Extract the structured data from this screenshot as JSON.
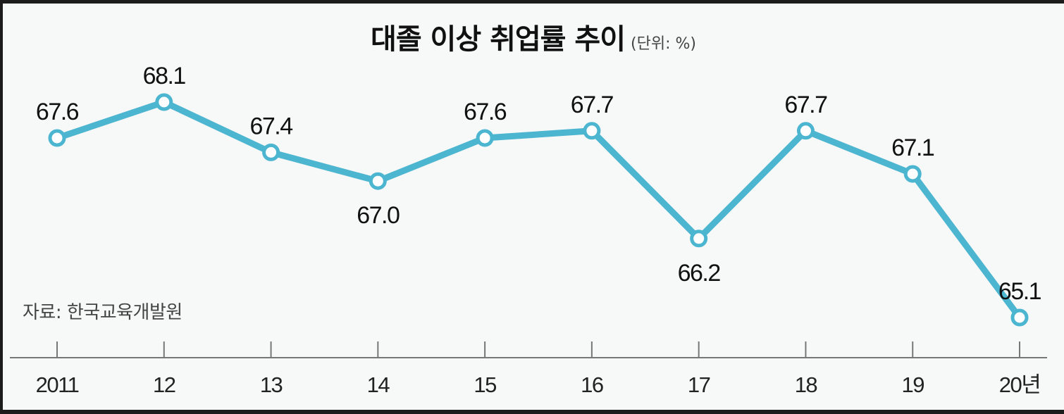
{
  "chart_data": {
    "type": "line",
    "title": "대졸 이상 취업률 추이",
    "unit_label": "(단위: %)",
    "source": "자료: 한국교육개발원",
    "xlabel": "",
    "ylabel": "",
    "categories": [
      "2011",
      "12",
      "13",
      "14",
      "15",
      "16",
      "17",
      "18",
      "19",
      "20년"
    ],
    "series": [
      {
        "name": "대졸 이상 취업률",
        "values": [
          67.6,
          68.1,
          67.4,
          67.0,
          67.6,
          67.7,
          66.2,
          67.7,
          67.1,
          65.1
        ],
        "labels": [
          "67.6",
          "68.1",
          "67.4",
          "67.0",
          "67.6",
          "67.7",
          "66.2",
          "67.7",
          "67.1",
          "65.1"
        ],
        "label_positions": [
          "above",
          "above",
          "above",
          "below",
          "above",
          "above",
          "below",
          "above",
          "above",
          "above"
        ],
        "color": "#4cb5d0"
      }
    ],
    "ylim": [
      65.0,
      68.2
    ],
    "grid": false,
    "legend": "none"
  },
  "colors": {
    "line": "#4cb5d0",
    "marker_fill": "#ffffff",
    "background": "#f7f8f8",
    "axis": "#777777",
    "text": "#111111"
  }
}
